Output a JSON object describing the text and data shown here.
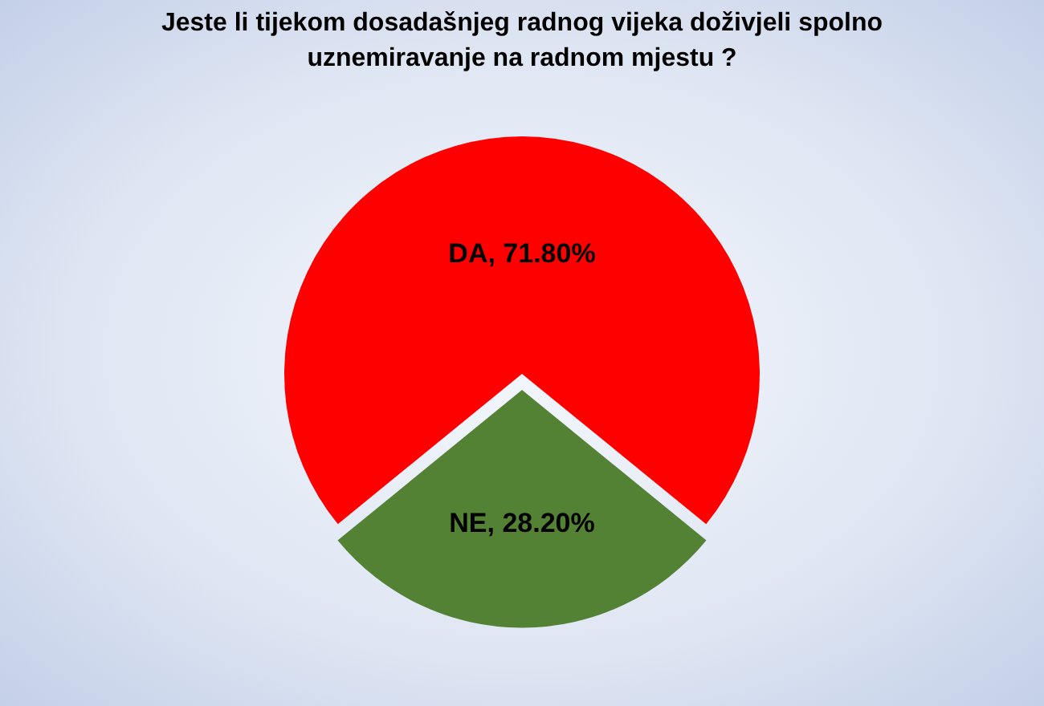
{
  "chart_data": {
    "type": "pie",
    "title": "Jeste li tijekom dosadašnjeg  radnog vijeka doživjeli spolno uznemiravanje na radnom mjestu ?",
    "categories": [
      "DA",
      "NE"
    ],
    "values": [
      71.8,
      28.2
    ],
    "colors": [
      "#ff0000",
      "#548235"
    ],
    "value_labels": [
      "71.80%",
      "28.20%"
    ],
    "legend": false
  }
}
